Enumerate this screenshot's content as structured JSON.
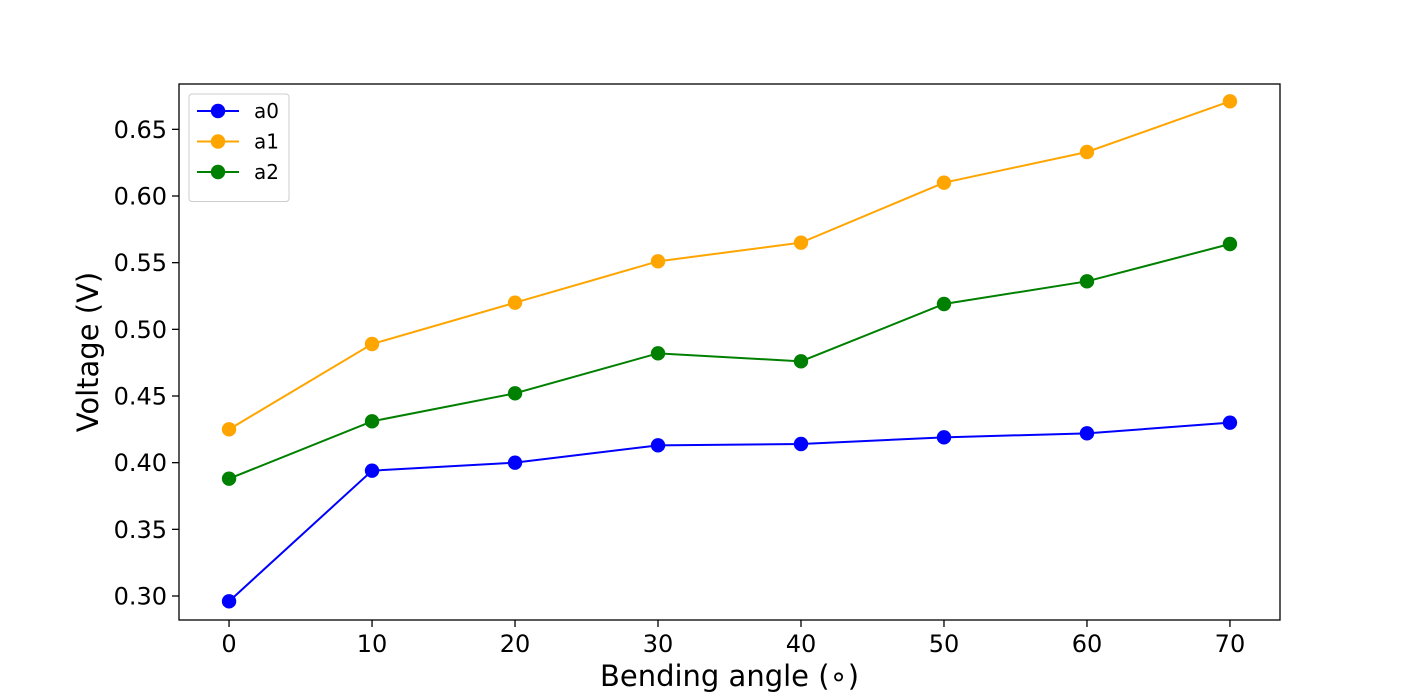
{
  "chart_data": {
    "type": "line",
    "title": "",
    "xlabel": "Bending angle ($^\\circ$)",
    "xlabel_display": "Bending angle (∘)",
    "ylabel": "Voltage (V)",
    "x": [
      0,
      10,
      20,
      30,
      40,
      50,
      60,
      70
    ],
    "xticks": [
      "0",
      "10",
      "20",
      "30",
      "40",
      "50",
      "60",
      "70"
    ],
    "xlim": [
      -3.5,
      73.5
    ],
    "yticks": [
      "0.30",
      "0.35",
      "0.40",
      "0.45",
      "0.50",
      "0.55",
      "0.60",
      "0.65"
    ],
    "ylim": [
      0.282,
      0.684
    ],
    "grid": false,
    "legend_position": "upper-left",
    "series": [
      {
        "name": "a0",
        "color": "#0000ff",
        "marker": "circle",
        "values": [
          0.296,
          0.394,
          0.4,
          0.413,
          0.414,
          0.419,
          0.422,
          0.43
        ]
      },
      {
        "name": "a1",
        "color": "#ffa500",
        "marker": "circle",
        "values": [
          0.425,
          0.489,
          0.52,
          0.551,
          0.565,
          0.61,
          0.633,
          0.671
        ]
      },
      {
        "name": "a2",
        "color": "#008000",
        "marker": "circle",
        "values": [
          0.388,
          0.431,
          0.452,
          0.482,
          0.476,
          0.519,
          0.536,
          0.564
        ]
      }
    ]
  }
}
